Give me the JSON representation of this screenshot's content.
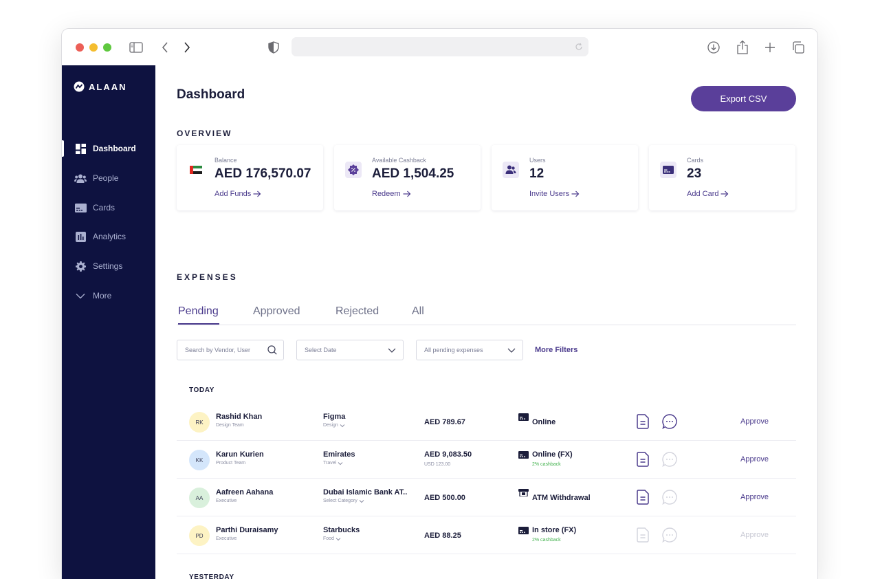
{
  "browser": {
    "traffic_lights": [
      "#ec5f57",
      "#f4bd2f",
      "#5fc83f"
    ]
  },
  "sidebar": {
    "logo_text": "ALAAN",
    "items": [
      {
        "label": "Dashboard",
        "icon": "dashboard-icon",
        "active": true
      },
      {
        "label": "People",
        "icon": "people-icon",
        "active": false
      },
      {
        "label": "Cards",
        "icon": "card-icon",
        "active": false
      },
      {
        "label": "Analytics",
        "icon": "analytics-icon",
        "active": false
      },
      {
        "label": "Settings",
        "icon": "gear-icon",
        "active": false
      },
      {
        "label": "More",
        "icon": "chevron-down-icon",
        "active": false
      }
    ]
  },
  "header": {
    "title": "Dashboard",
    "export_label": "Export CSV"
  },
  "overview": {
    "label": "OVERVIEW",
    "cards": [
      {
        "label": "Balance",
        "value": "AED 176,570.07",
        "link": "Add Funds",
        "icon": "uae-flag-icon"
      },
      {
        "label": "Available Cashback",
        "value": "AED 1,504.25",
        "link": "Redeem",
        "icon": "cashback-badge-icon"
      },
      {
        "label": "Users",
        "value": "12",
        "link": "Invite Users",
        "icon": "users-icon"
      },
      {
        "label": "Cards",
        "value": "23",
        "link": "Add Card",
        "icon": "card-icon"
      }
    ]
  },
  "expenses": {
    "label": "EXPENSES",
    "tabs": [
      "Pending",
      "Approved",
      "Rejected",
      "All"
    ],
    "active_tab": "Pending",
    "filters": {
      "search_placeholder": "Search by Vendor, User",
      "date_placeholder": "Select Date",
      "status_value": "All pending expenses",
      "more_filters": "More Filters"
    },
    "groups": [
      {
        "label": "TODAY",
        "rows": [
          {
            "initials": "RK",
            "avatar_color": "#fdf3c4",
            "name": "Rashid Khan",
            "team": "Design Team",
            "vendor": "Figma",
            "category": "Design",
            "amount": "AED 789.67",
            "amount_sub": "",
            "method": "Online",
            "method_icon": "card-icon",
            "cashback": "",
            "receipt_active": true,
            "comment_active": true,
            "approve": "Approve",
            "approve_enabled": true
          },
          {
            "initials": "KK",
            "avatar_color": "#d4e6fb",
            "name": "Karun Kurien",
            "team": "Product Team",
            "vendor": "Emirates",
            "category": "Travel",
            "amount": "AED 9,083.50",
            "amount_sub": "USD 123.00",
            "method": "Online (FX)",
            "method_icon": "card-icon",
            "cashback": "2% cashback",
            "receipt_active": true,
            "comment_active": false,
            "approve": "Approve",
            "approve_enabled": true
          },
          {
            "initials": "AA",
            "avatar_color": "#d9f0dc",
            "name": "Aafreen Aahana",
            "team": "Executive",
            "vendor": "Dubai Islamic Bank AT..",
            "category": "Select Category",
            "amount": "AED 500.00",
            "amount_sub": "",
            "method": "ATM Withdrawal",
            "method_icon": "atm-icon",
            "cashback": "",
            "receipt_active": true,
            "comment_active": false,
            "approve": "Approve",
            "approve_enabled": true
          },
          {
            "initials": "PD",
            "avatar_color": "#fdf3c4",
            "name": "Parthi Duraisamy",
            "team": "Executive",
            "vendor": "Starbucks",
            "category": "Food",
            "amount": "AED 88.25",
            "amount_sub": "",
            "method": "In store (FX)",
            "method_icon": "card-icon",
            "cashback": "2% cashback",
            "receipt_active": false,
            "comment_active": false,
            "approve": "Approve",
            "approve_enabled": false
          }
        ]
      },
      {
        "label": "YESTERDAY",
        "rows": []
      }
    ]
  }
}
